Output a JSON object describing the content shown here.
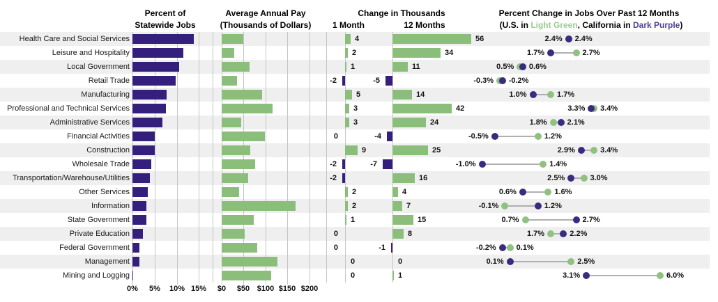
{
  "categories": [
    "Health Care and Social Services",
    "Leisure and Hospitality",
    "Local Government",
    "Retail Trade",
    "Manufacturing",
    "Professional and Technical Services",
    "Administrative Services",
    "Financial Activities",
    "Construction",
    "Wholesale Trade",
    "Transportation/Warehouse/Utilities",
    "Other Services",
    "Information",
    "State Government",
    "Private Education",
    "Federal Government",
    "Management",
    "Mining and Logging"
  ],
  "headers": {
    "p1_line1": "Percent of",
    "p1_line2": "Statewide Jobs",
    "p2_line1": "Average Annual Pay",
    "p2_line2": "(Thousands of Dollars)",
    "p3_title": "Change in Thousands",
    "p3_col1": "1 Month",
    "p3_col2": "12 Months",
    "p4_title": "Percent Change in Jobs Over Past 12 Months",
    "p4_sub_prefix": "(U.S. in ",
    "p4_sub_green": "Light Green",
    "p4_sub_mid": ", California in ",
    "p4_sub_purple": "Dark Purple",
    "p4_sub_suffix": ")"
  },
  "colors": {
    "purple_bar": "#351F7C",
    "purple_dot": "#3A2B80",
    "green_bar": "#8CBE7B",
    "green_dot": "#8FC180",
    "row_stripe": "#EFEFEF",
    "gridline": "#C5C5C5",
    "connector": "#AFAFAF",
    "legend_green_text": "#9BCA8E",
    "legend_purple_text": "#51409A"
  },
  "chart_data": [
    {
      "type": "bar",
      "title": "Percent of Statewide Jobs",
      "orientation": "horizontal",
      "xlim": [
        0,
        18
      ],
      "tick_values": [
        0,
        5,
        10,
        15
      ],
      "tick_labels": [
        "0%",
        "5%",
        "10%",
        "15%"
      ],
      "values": [
        13.9,
        11.5,
        10.6,
        9.8,
        7.7,
        7.6,
        6.7,
        5.0,
        5.1,
        4.2,
        4.0,
        3.4,
        3.2,
        3.2,
        2.3,
        1.5,
        1.6,
        0.2
      ]
    },
    {
      "type": "bar",
      "title": "Average Annual Pay (Thousands of Dollars)",
      "orientation": "horizontal",
      "xlim": [
        0,
        240
      ],
      "tick_values": [
        0,
        50,
        100,
        150,
        200
      ],
      "tick_labels": [
        "$0",
        "$50",
        "$100",
        "$150",
        "$200"
      ],
      "values": [
        49,
        29,
        63,
        35,
        92,
        116,
        44,
        98,
        66,
        76,
        60,
        40,
        168,
        74,
        53,
        81,
        127,
        113
      ]
    },
    {
      "type": "bar",
      "title": "Change in Thousands",
      "orientation": "horizontal",
      "series": [
        {
          "name": "1 Month",
          "values": [
            4,
            2,
            1,
            -2,
            5,
            3,
            3,
            0,
            9,
            -2,
            -2,
            2,
            2,
            1,
            0,
            0,
            0,
            0
          ],
          "zero_label_left_rows": [
            7,
            14,
            15
          ]
        },
        {
          "name": "12 Months",
          "values": [
            56,
            34,
            11,
            -5,
            14,
            42,
            24,
            -4,
            25,
            -7,
            16,
            4,
            7,
            15,
            8,
            -1,
            0,
            1
          ],
          "zero_label_left_rows": []
        }
      ]
    },
    {
      "type": "scatter",
      "title": "Percent Change in Jobs Over Past 12 Months",
      "subtitle": "(U.S. in Light Green, California in Dark Purple)",
      "unit": "%",
      "series": [
        {
          "name": "U.S.",
          "color": "light_green",
          "values": [
            2.4,
            2.7,
            0.5,
            -0.3,
            1.7,
            3.4,
            1.8,
            1.2,
            3.4,
            1.4,
            3.0,
            1.6,
            -0.1,
            0.7,
            1.7,
            0.1,
            2.5,
            6.0
          ]
        },
        {
          "name": "California",
          "color": "dark_purple",
          "values": [
            2.4,
            1.7,
            0.6,
            -0.2,
            1.0,
            3.3,
            2.1,
            -0.5,
            2.9,
            -1.0,
            2.5,
            0.6,
            1.2,
            2.7,
            2.2,
            -0.2,
            0.1,
            3.1
          ]
        }
      ]
    }
  ]
}
